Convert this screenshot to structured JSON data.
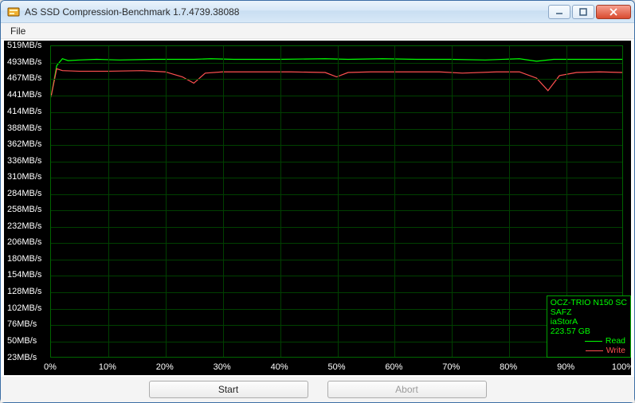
{
  "window": {
    "title": "AS SSD Compression-Benchmark 1.7.4739.38088",
    "menu": {
      "file": "File"
    },
    "buttons": {
      "start": "Start",
      "abort": "Abort"
    }
  },
  "chart": {
    "type": "line",
    "background_color": "#000000",
    "grid_color": "#004000",
    "axis_label_color": "#ffffff",
    "axis_fontsize": 11,
    "border_color": "#006400",
    "y_unit_suffix": "MB/s",
    "y_ticks": [
      519,
      493,
      467,
      441,
      414,
      388,
      362,
      336,
      310,
      284,
      258,
      232,
      206,
      180,
      154,
      128,
      102,
      76,
      50,
      23
    ],
    "ylim": [
      23,
      519
    ],
    "x_ticks": [
      0,
      10,
      20,
      30,
      40,
      50,
      60,
      70,
      80,
      90,
      100
    ],
    "x_suffix": "%",
    "xlim": [
      0,
      100
    ],
    "series": [
      {
        "name": "Read",
        "color": "#00ff00",
        "line_width": 1.2,
        "x": [
          0,
          1,
          2,
          3,
          5,
          8,
          12,
          18,
          22,
          25,
          28,
          32,
          40,
          48,
          52,
          58,
          64,
          70,
          76,
          82,
          85,
          88,
          92,
          96,
          100
        ],
        "y": [
          438,
          488,
          499,
          496,
          497,
          498,
          497,
          498,
          498,
          498,
          499,
          498,
          498,
          499,
          498,
          499,
          498,
          498,
          497,
          499,
          495,
          498,
          498,
          498,
          498
        ]
      },
      {
        "name": "Write",
        "color": "#ff5050",
        "line_width": 1.2,
        "x": [
          0,
          1,
          2,
          5,
          10,
          16,
          20,
          23,
          25,
          27,
          30,
          36,
          42,
          48,
          50,
          52,
          56,
          62,
          68,
          72,
          78,
          82,
          85,
          87,
          89,
          92,
          96,
          100
        ],
        "y": [
          438,
          483,
          480,
          479,
          479,
          480,
          478,
          470,
          460,
          476,
          478,
          478,
          478,
          477,
          470,
          477,
          478,
          478,
          478,
          476,
          478,
          478,
          468,
          448,
          472,
          477,
          478,
          477
        ]
      }
    ],
    "legend": {
      "border_color": "#00a000",
      "text_color": "#00ff00",
      "device": "OCZ-TRIO N150 SC",
      "firmware": "SAFZ",
      "driver": "iaStorA",
      "capacity": "223.57 GB",
      "entries": [
        {
          "label": "Read",
          "color": "#00ff00"
        },
        {
          "label": "Write",
          "color": "#ff5050"
        }
      ]
    }
  }
}
